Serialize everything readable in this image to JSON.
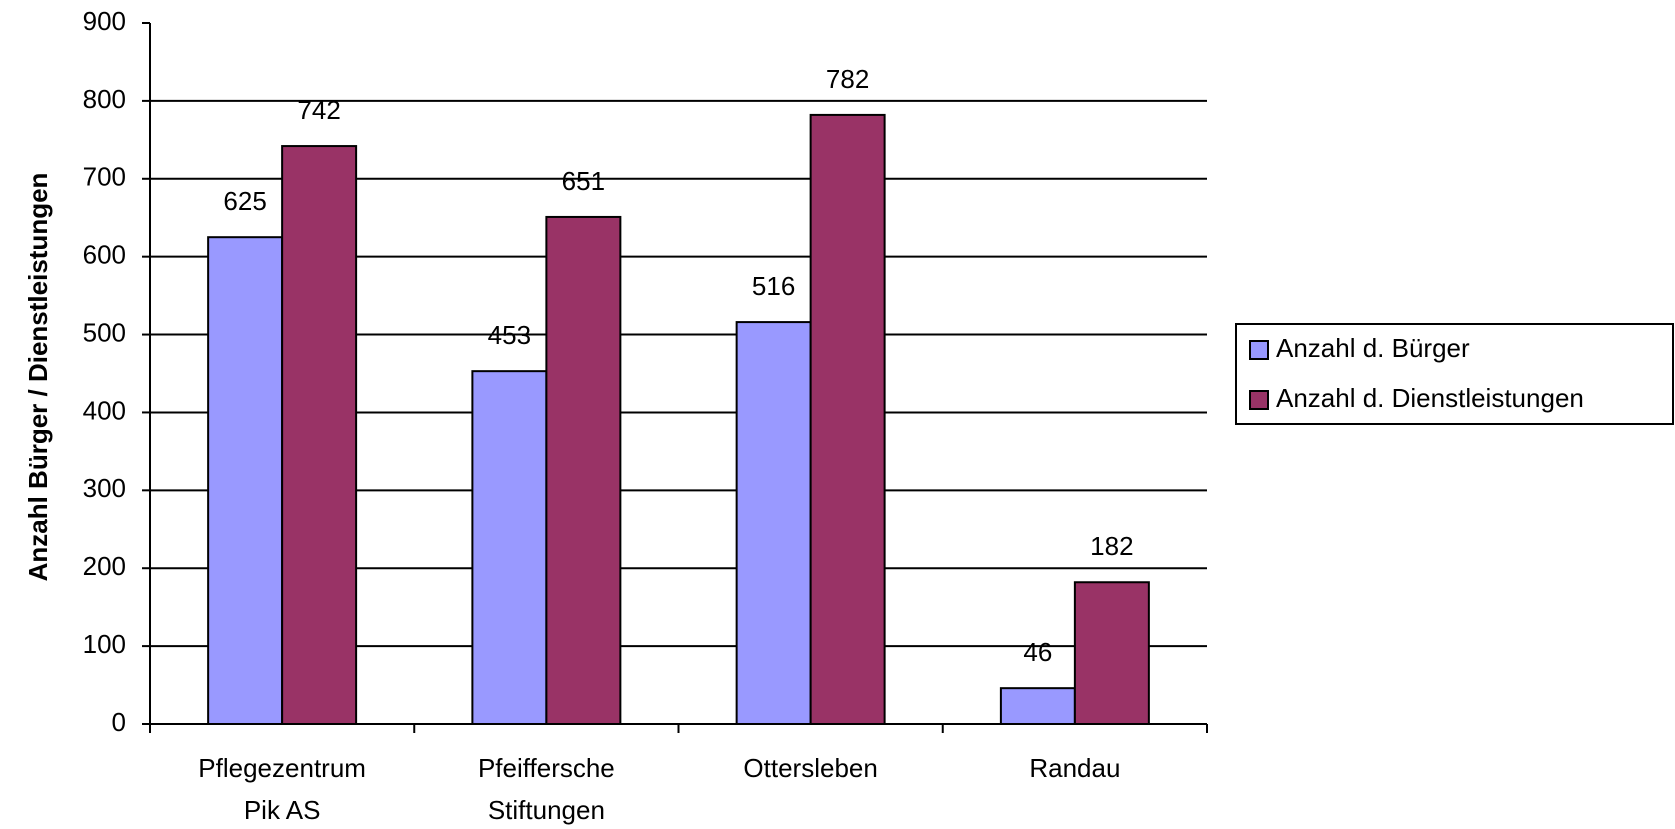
{
  "chart_data": {
    "type": "bar",
    "ylabel": "Anzahl Bürger / Dienstleistungen",
    "categories": [
      [
        "Pflegezentrum",
        "Pik AS"
      ],
      [
        "Pfeiffersche",
        "Stiftungen"
      ],
      [
        "Ottersleben"
      ],
      [
        "Randau"
      ]
    ],
    "series": [
      {
        "name": "Anzahl d. Bürger",
        "color": "#9999ff",
        "values": [
          625,
          453,
          516,
          46
        ]
      },
      {
        "name": "Anzahl d. Dienstleistungen",
        "color": "#993366",
        "values": [
          742,
          651,
          782,
          182
        ]
      }
    ],
    "ylim": [
      0,
      900
    ],
    "yticks": [
      0,
      100,
      200,
      300,
      400,
      500,
      600,
      700,
      800,
      900
    ],
    "grid": true,
    "legend": "right"
  }
}
